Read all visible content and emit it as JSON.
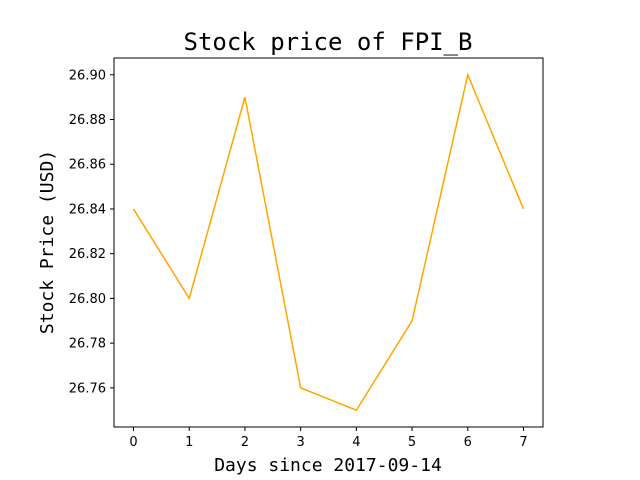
{
  "chart_data": {
    "type": "line",
    "title": "Stock price of FPI_B",
    "xlabel": "Days since 2017-09-14",
    "ylabel": "Stock Price (USD)",
    "x": [
      0,
      1,
      2,
      3,
      4,
      5,
      6,
      7
    ],
    "series": [
      {
        "values": [
          26.84,
          26.8,
          26.89,
          26.76,
          26.75,
          26.79,
          26.9,
          26.84
        ],
        "color": "#ffa500"
      }
    ],
    "xticks": [
      "0",
      "1",
      "2",
      "3",
      "4",
      "5",
      "6",
      "7"
    ],
    "yticks": [
      "26.76",
      "26.78",
      "26.80",
      "26.82",
      "26.84",
      "26.86",
      "26.88",
      "26.90"
    ],
    "xlim": [
      -0.35,
      7.35
    ],
    "ylim": [
      26.7425,
      26.9075
    ],
    "grid": false,
    "legend": false
  }
}
